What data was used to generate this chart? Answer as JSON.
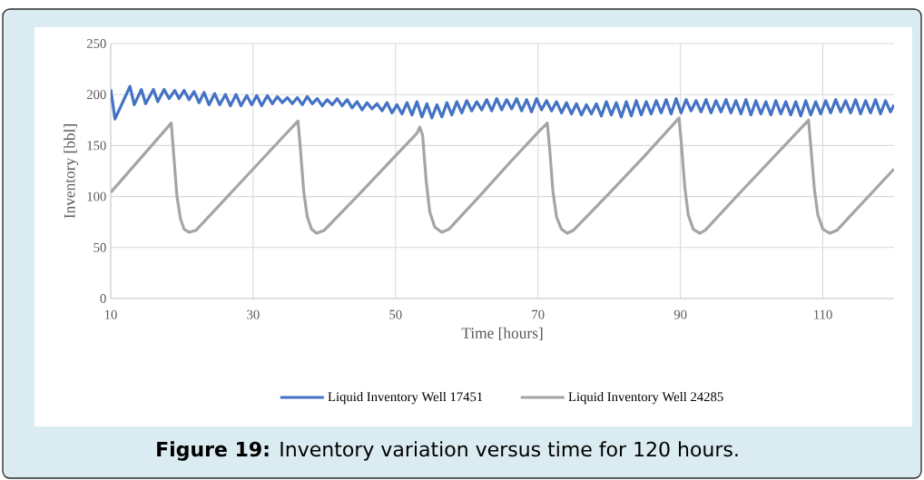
{
  "chart_data": {
    "type": "line",
    "xlabel": "Time [hours]",
    "ylabel": "Inventory [bbl]",
    "xlim": [
      10,
      120
    ],
    "xticks": [
      10,
      30,
      50,
      70,
      90,
      110
    ],
    "ylim": [
      0,
      250
    ],
    "yticks": [
      0,
      50,
      100,
      150,
      200,
      250
    ],
    "grid": true,
    "legend": "bottom",
    "annotations": [
      "**Figure 19:** Inventory variation versus time for 120 hours."
    ],
    "series": [
      {
        "name": "Liquid Inventory Well 17451",
        "color": "#4472c4",
        "x": [
          10,
          10.6,
          12.7,
          13.3,
          14.3,
          14.9,
          16,
          16.6,
          17.5,
          18.2,
          19,
          19.6,
          20.3,
          21,
          21.7,
          22.4,
          23.1,
          23.8,
          24.6,
          25.3,
          26.1,
          26.8,
          27.6,
          28.3,
          29.1,
          29.8,
          30.5,
          31.2,
          32,
          32.7,
          33.4,
          34.1,
          34.8,
          35.5,
          36.2,
          36.9,
          37.6,
          38.3,
          39,
          39.7,
          40.4,
          41.1,
          41.8,
          42.5,
          43.2,
          43.9,
          44.6,
          45.3,
          46,
          46.7,
          47.4,
          48.1,
          48.8,
          49.5,
          50.2,
          50.9,
          51.6,
          52.3,
          53,
          53.7,
          54.4,
          55.1,
          55.8,
          56.5,
          57.2,
          57.9,
          58.6,
          59.3,
          60,
          60.7,
          61.4,
          62.1,
          62.8,
          63.5,
          64.2,
          64.9,
          65.6,
          66.3,
          67,
          67.7,
          68.4,
          69.1,
          69.8,
          70.5,
          71.2,
          71.9,
          72.6,
          73.3,
          74,
          74.7,
          75.4,
          76.1,
          76.8,
          77.5,
          78.2,
          78.9,
          79.6,
          80.3,
          81,
          81.7,
          82.4,
          83.1,
          83.8,
          84.5,
          85.2,
          85.9,
          86.6,
          87.3,
          88,
          88.7,
          89.4,
          90.1,
          90.8,
          91.5,
          92.2,
          92.9,
          93.6,
          94.3,
          95,
          95.7,
          96.4,
          97.1,
          97.8,
          98.5,
          99.2,
          99.9,
          100.6,
          101.3,
          102,
          102.7,
          103.4,
          104.1,
          104.8,
          105.5,
          106.2,
          106.9,
          107.6,
          108.3,
          109,
          109.7,
          110.4,
          111.1,
          111.8,
          112.5,
          113.2,
          113.9,
          114.6,
          115.3,
          116,
          116.7,
          117.4,
          118.1,
          118.8,
          119.5,
          120
        ],
        "values": [
          205,
          176,
          208,
          190,
          205,
          191,
          205,
          193,
          205,
          196,
          204,
          196,
          204,
          195,
          203,
          192,
          202,
          190,
          201,
          190,
          200,
          189,
          200,
          189,
          199,
          190,
          199,
          189,
          199,
          191,
          198,
          192,
          197,
          191,
          197,
          190,
          198,
          191,
          196,
          189,
          195,
          190,
          196,
          189,
          195,
          187,
          193,
          185,
          192,
          186,
          191,
          184,
          192,
          182,
          190,
          181,
          192,
          180,
          193,
          178,
          191,
          177,
          190,
          178,
          192,
          180,
          193,
          182,
          194,
          184,
          193,
          185,
          195,
          184,
          196,
          185,
          195,
          186,
          196,
          184,
          195,
          183,
          196,
          185,
          194,
          184,
          193,
          182,
          192,
          181,
          191,
          180,
          190,
          181,
          191,
          179,
          193,
          180,
          192,
          178,
          193,
          179,
          194,
          180,
          193,
          181,
          194,
          182,
          195,
          181,
          196,
          182,
          195,
          184,
          194,
          183,
          195,
          182,
          194,
          183,
          195,
          182,
          194,
          181,
          195,
          180,
          194,
          181,
          193,
          180,
          194,
          181,
          193,
          180,
          193,
          179,
          194,
          180,
          193,
          181,
          194,
          182,
          195,
          183,
          194,
          182,
          195,
          181,
          194,
          182,
          195,
          181,
          194,
          183,
          190
        ]
      },
      {
        "name": "Liquid Inventory Well 24285",
        "color": "#a5a5a5",
        "x": [
          10,
          18.5,
          18.8,
          19.3,
          19.8,
          20.3,
          21,
          22,
          26,
          30,
          34,
          36.3,
          36.6,
          37.1,
          37.6,
          38.2,
          38.9,
          40,
          45,
          50,
          53,
          53.4,
          53.8,
          54.3,
          54.8,
          55.5,
          56.5,
          57.5,
          62,
          66,
          70,
          71.3,
          71.6,
          72.1,
          72.6,
          73.3,
          74.1,
          75,
          80,
          85,
          89.8,
          90.1,
          90.6,
          91.1,
          91.8,
          92.7,
          93.5,
          98,
          103,
          108,
          108.3,
          108.8,
          109.3,
          110,
          111,
          112,
          116,
          120
        ],
        "values": [
          104,
          172,
          145,
          100,
          78,
          68,
          65,
          67,
          97,
          127,
          157,
          174,
          150,
          105,
          80,
          68,
          64,
          67,
          103,
          140,
          162,
          168,
          160,
          115,
          85,
          70,
          65,
          68,
          102,
          133,
          163,
          172,
          150,
          105,
          80,
          68,
          64,
          67,
          103,
          140,
          177,
          155,
          110,
          82,
          68,
          64,
          67,
          101,
          138,
          175,
          150,
          108,
          82,
          68,
          64,
          67,
          97,
          127
        ]
      }
    ]
  }
}
